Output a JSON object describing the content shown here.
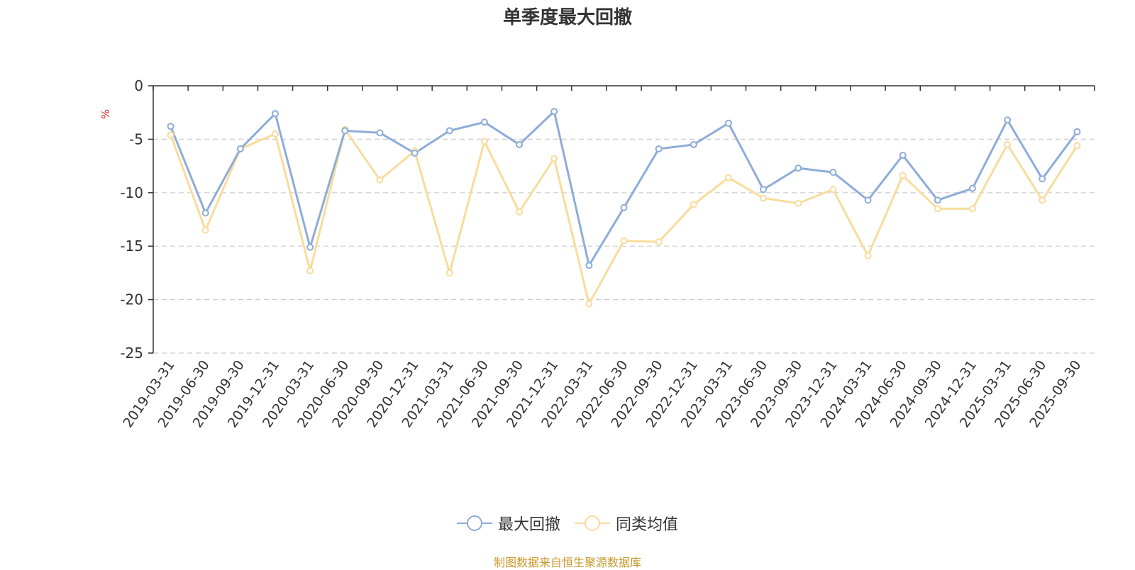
{
  "chart_data": {
    "type": "line",
    "title": "单季度最大回撤",
    "ylabel": "%",
    "ylim": [
      -25,
      0
    ],
    "yticks": [
      0,
      -5,
      -10,
      -15,
      -20,
      -25
    ],
    "grid": true,
    "legend_position": "bottom-center",
    "categories": [
      "2019-03-31",
      "2019-06-30",
      "2019-09-30",
      "2019-12-31",
      "2020-03-31",
      "2020-06-30",
      "2020-09-30",
      "2020-12-31",
      "2021-03-31",
      "2021-06-30",
      "2021-09-30",
      "2021-12-31",
      "2022-03-31",
      "2022-06-30",
      "2022-09-30",
      "2022-12-31",
      "2023-03-31",
      "2023-06-30",
      "2023-09-30",
      "2023-12-31",
      "2024-03-31",
      "2024-06-30",
      "2024-09-30",
      "2024-12-31",
      "2025-03-31",
      "2025-06-30",
      "2025-09-30"
    ],
    "series": [
      {
        "name": "最大回撤",
        "color": "#8eacd9",
        "values": [
          -3.8,
          -11.9,
          -5.9,
          -2.6,
          -15.1,
          -4.2,
          -4.4,
          -6.3,
          -4.2,
          -3.4,
          -5.5,
          -2.4,
          -16.8,
          -11.4,
          -5.9,
          -5.5,
          -3.5,
          -9.7,
          -7.7,
          -8.1,
          -10.7,
          -6.5,
          -10.7,
          -9.6,
          -3.2,
          -8.7,
          -4.3
        ]
      },
      {
        "name": "同类均值",
        "color": "#f9dc9c",
        "values": [
          -4.6,
          -13.5,
          -5.9,
          -4.5,
          -17.3,
          -4.1,
          -8.8,
          -6.1,
          -17.5,
          -5.2,
          -11.8,
          -6.8,
          -20.4,
          -14.5,
          -14.6,
          -11.1,
          -8.6,
          -10.5,
          -11.0,
          -9.7,
          -15.9,
          -8.4,
          -11.5,
          -11.5,
          -5.5,
          -10.7,
          -5.6
        ]
      }
    ]
  },
  "footer": {
    "source": "制图数据来自恒生聚源数据库"
  }
}
